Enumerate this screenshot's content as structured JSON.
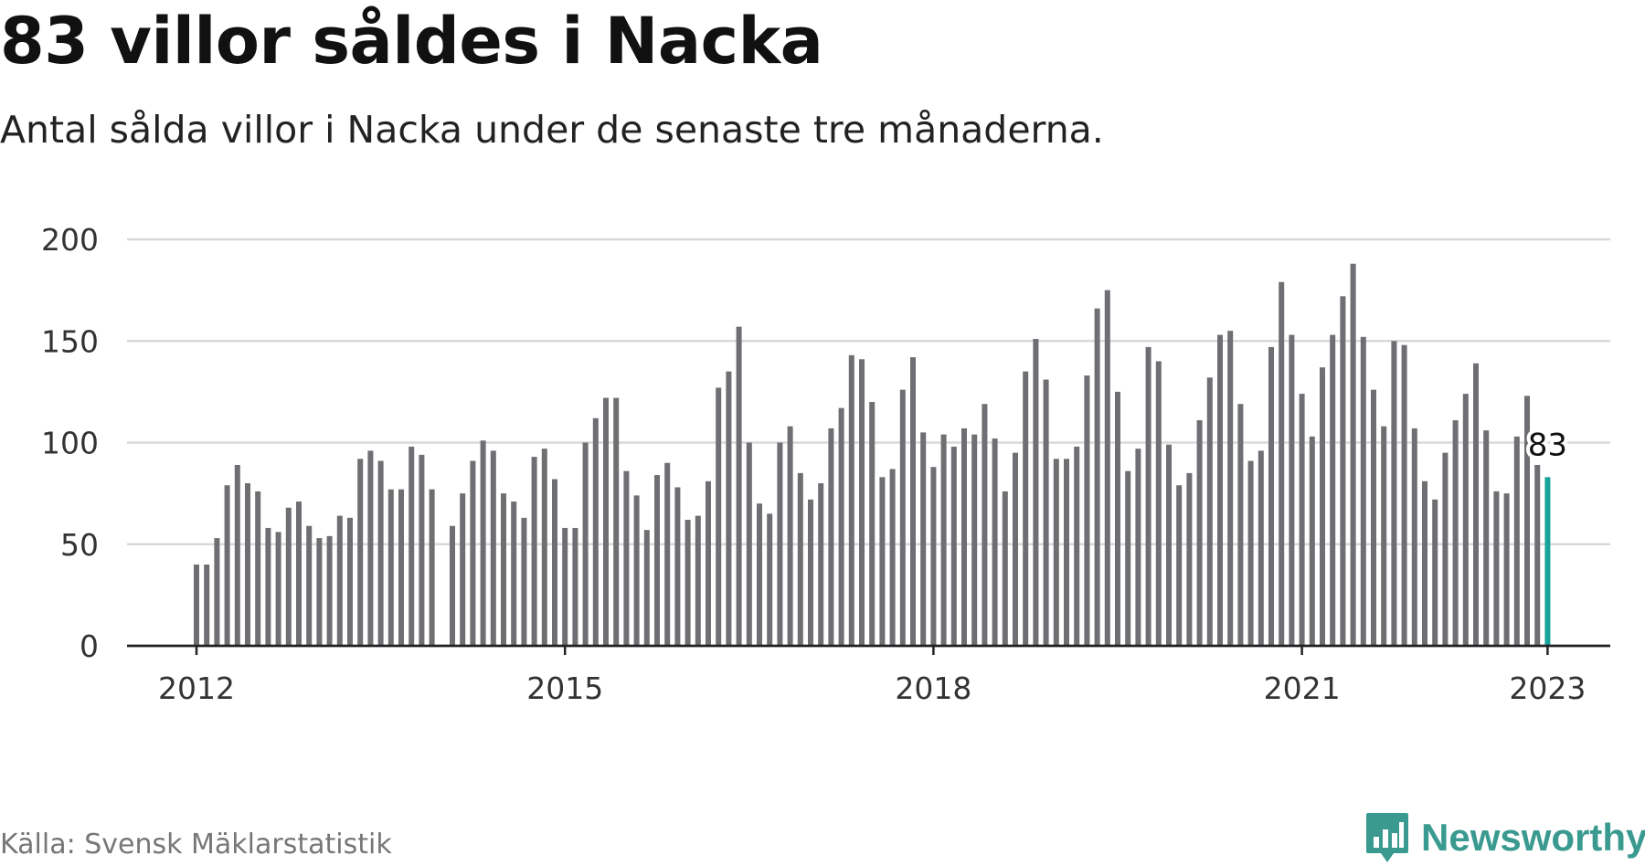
{
  "header": {
    "title": "83 villor såldes i Nacka",
    "subtitle": "Antal sålda villor i Nacka under de senaste tre månaderna."
  },
  "footer": {
    "source": "Källa: Svensk Mäklarstatistik",
    "brand": "Newsworthy"
  },
  "colors": {
    "bar": "#6e6e73",
    "highlight": "#1aa39a",
    "grid": "#d9d9d9",
    "axis": "#222222",
    "brand": "#3a9a8f"
  },
  "chart_data": {
    "type": "bar",
    "title": "83 villor såldes i Nacka",
    "subtitle": "Antal sålda villor i Nacka under de senaste tre månaderna.",
    "xlabel": "",
    "ylabel": "",
    "ylim": [
      0,
      200
    ],
    "yticks": [
      0,
      50,
      100,
      150,
      200
    ],
    "xticks": [
      "2012",
      "2015",
      "2018",
      "2021",
      "2023"
    ],
    "grid": true,
    "legend": "none",
    "start": "2012-01",
    "end": "2023-01",
    "values": [
      40,
      40,
      53,
      79,
      89,
      80,
      76,
      58,
      56,
      68,
      71,
      59,
      53,
      54,
      64,
      63,
      92,
      96,
      91,
      77,
      77,
      98,
      94,
      77,
      null,
      59,
      75,
      91,
      101,
      96,
      75,
      71,
      63,
      93,
      97,
      82,
      58,
      58,
      100,
      112,
      122,
      122,
      86,
      74,
      57,
      84,
      90,
      78,
      62,
      64,
      81,
      127,
      135,
      157,
      100,
      70,
      65,
      100,
      108,
      85,
      72,
      80,
      107,
      117,
      143,
      141,
      120,
      83,
      87,
      126,
      142,
      105,
      88,
      104,
      98,
      107,
      104,
      119,
      102,
      76,
      95,
      135,
      151,
      131,
      92,
      92,
      98,
      133,
      166,
      175,
      125,
      86,
      97,
      147,
      140,
      99,
      79,
      85,
      111,
      132,
      153,
      155,
      119,
      91,
      96,
      147,
      179,
      153,
      124,
      103,
      137,
      153,
      172,
      188,
      152,
      126,
      108,
      150,
      148,
      107,
      81,
      72,
      95,
      111,
      124,
      139,
      106,
      76,
      75,
      103,
      123,
      89,
      83
    ],
    "highlight_label": "83"
  }
}
